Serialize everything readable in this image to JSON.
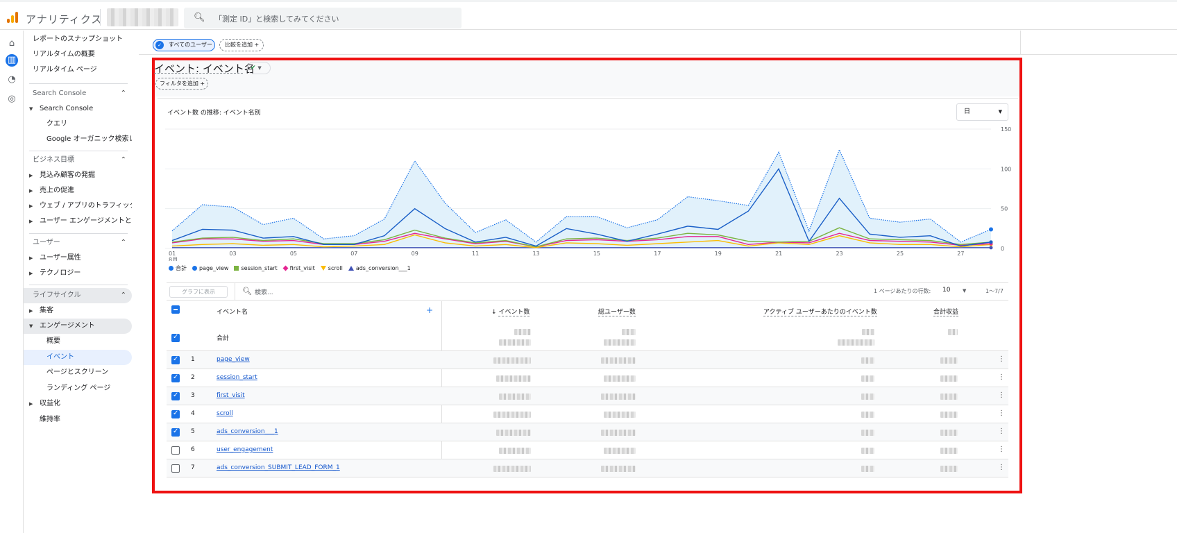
{
  "app": {
    "brand": "アナリティクス",
    "search_placeholder": "「測定 ID」と検索してみてください"
  },
  "nav": {
    "items": [
      {
        "label": "レポートのスナップショット"
      },
      {
        "label": "リアルタイムの概要"
      },
      {
        "label": "リアルタイム ページ"
      },
      {
        "label": "Search Console"
      },
      {
        "label": "Search Console"
      },
      {
        "label": "クエリ"
      },
      {
        "label": "Google オーガニック検索レ..."
      },
      {
        "label": "ビジネス目標"
      },
      {
        "label": "見込み顧客の発掘"
      },
      {
        "label": "売上の促進"
      },
      {
        "label": "ウェブ / アプリのトラフィック..."
      },
      {
        "label": "ユーザー エンゲージメントと..."
      },
      {
        "label": "ユーザー"
      },
      {
        "label": "ユーザー属性"
      },
      {
        "label": "テクノロジー"
      },
      {
        "label": "ライフサイクル"
      },
      {
        "label": "集客"
      },
      {
        "label": "エンゲージメント"
      },
      {
        "label": "概要"
      },
      {
        "label": "イベント"
      },
      {
        "label": "ページとスクリーン"
      },
      {
        "label": "ランディング ページ"
      },
      {
        "label": "収益化"
      },
      {
        "label": "維持率"
      }
    ]
  },
  "chips": {
    "all_users": "すべてのユーザー",
    "compare": "比較を追加",
    "filter": "フィルタを追加"
  },
  "report": {
    "title": "イベント: イベント名",
    "chart_title": "イベント数 の推移: イベント名別",
    "granularity": "日"
  },
  "chart_data": {
    "type": "area",
    "x_ticks": [
      "01",
      "03",
      "05",
      "07",
      "09",
      "11",
      "13",
      "15",
      "17",
      "19",
      "21",
      "23",
      "25",
      "27"
    ],
    "x_month_label": "8月",
    "y_ticks": [
      0,
      50,
      100,
      150
    ],
    "ylim": [
      0,
      150
    ],
    "x": [
      1,
      2,
      3,
      4,
      5,
      6,
      7,
      8,
      9,
      10,
      11,
      12,
      13,
      14,
      15,
      16,
      17,
      18,
      19,
      20,
      21,
      22,
      23,
      24,
      25,
      26,
      27,
      28
    ],
    "series": [
      {
        "name": "合計",
        "color": "#1a73e8",
        "style": "dotted",
        "values": [
          22,
          55,
          52,
          30,
          38,
          12,
          16,
          37,
          110,
          57,
          20,
          36,
          8,
          40,
          40,
          26,
          36,
          65,
          60,
          54,
          121,
          22,
          124,
          38,
          33,
          37,
          8,
          24
        ]
      },
      {
        "name": "page_view",
        "color": "#1a5fc7",
        "values": [
          10,
          24,
          23,
          13,
          15,
          5,
          5,
          16,
          50,
          25,
          8,
          14,
          3,
          25,
          18,
          9,
          18,
          28,
          24,
          47,
          100,
          9,
          63,
          18,
          14,
          16,
          3,
          8
        ]
      },
      {
        "name": "session_start",
        "color": "#7cb342",
        "values": [
          8,
          13,
          14,
          10,
          12,
          6,
          6,
          11,
          23,
          13,
          7,
          10,
          2,
          12,
          13,
          10,
          13,
          19,
          17,
          9,
          8,
          9,
          26,
          12,
          11,
          10,
          5,
          8
        ]
      },
      {
        "name": "first_visit",
        "color": "#e52592",
        "values": [
          7,
          12,
          12,
          9,
          10,
          5,
          5,
          9,
          19,
          12,
          6,
          9,
          2,
          10,
          11,
          9,
          11,
          15,
          15,
          5,
          8,
          7,
          19,
          10,
          9,
          8,
          4,
          6
        ]
      },
      {
        "name": "scroll",
        "color": "#fbbc04",
        "values": [
          3,
          5,
          6,
          4,
          5,
          2,
          3,
          5,
          17,
          7,
          3,
          5,
          1,
          7,
          6,
          4,
          6,
          8,
          10,
          3,
          7,
          5,
          16,
          7,
          5,
          5,
          2,
          5
        ]
      },
      {
        "name": "ads_conversion___1",
        "color": "#3f51b5",
        "values": [
          1,
          1,
          1,
          1,
          1,
          1,
          1,
          1,
          1,
          1,
          1,
          1,
          1,
          1,
          1,
          1,
          1,
          1,
          1,
          1,
          1,
          1,
          1,
          1,
          1,
          1,
          1,
          1
        ]
      }
    ]
  },
  "legend": [
    {
      "name": "合計",
      "color": "#1a73e8",
      "shape": "pin"
    },
    {
      "name": "page_view",
      "color": "#1a73e8",
      "shape": "circle"
    },
    {
      "name": "session_start",
      "color": "#7cb342",
      "shape": "square"
    },
    {
      "name": "first_visit",
      "color": "#e52592",
      "shape": "diamond"
    },
    {
      "name": "scroll",
      "color": "#fbbc04",
      "shape": "triangle-down"
    },
    {
      "name": "ads_conversion___1",
      "color": "#3f51b5",
      "shape": "triangle-up"
    }
  ],
  "table": {
    "show_in_chart": "グラフに表示",
    "search_placeholder": "検索...",
    "rows_per_page_label": "1 ページあたりの行数:",
    "rows_per_page": "10",
    "pagination": "1〜7/7",
    "headers": {
      "event_name": "イベント名",
      "event_count": "イベント数",
      "total_users": "総ユーザー数",
      "events_per_active_user": "アクティブ ユーザーあたりのイベント数",
      "total_revenue": "合計収益"
    },
    "total_label": "合計",
    "rows": [
      {
        "index": "1",
        "name": "page_view",
        "checked": true
      },
      {
        "index": "2",
        "name": "session_start",
        "checked": true
      },
      {
        "index": "3",
        "name": "first_visit",
        "checked": true
      },
      {
        "index": "4",
        "name": "scroll",
        "checked": true
      },
      {
        "index": "5",
        "name": "ads_conversion___1",
        "checked": true
      },
      {
        "index": "6",
        "name": "user_engagement",
        "checked": false
      },
      {
        "index": "7",
        "name": "ads_conversion_SUBMIT_LEAD_FORM_1",
        "checked": false
      }
    ]
  }
}
